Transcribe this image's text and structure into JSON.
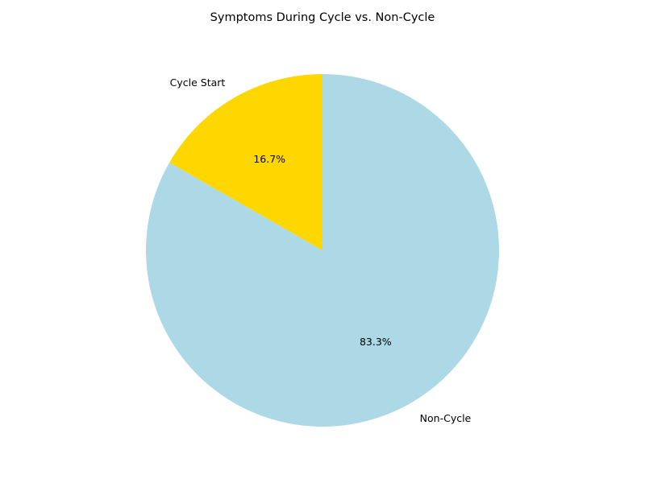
{
  "chart_data": {
    "type": "pie",
    "title": "Symptoms During Cycle vs. Non-Cycle",
    "slices": [
      {
        "label": "Cycle Start",
        "value": 16.7,
        "pct_label": "16.7%",
        "color": "#ffd700"
      },
      {
        "label": "Non-Cycle",
        "value": 83.3,
        "pct_label": "83.3%",
        "color": "#add8e6"
      }
    ],
    "start_angle_deg": 90,
    "direction": "counterclockwise",
    "legend": "none"
  }
}
